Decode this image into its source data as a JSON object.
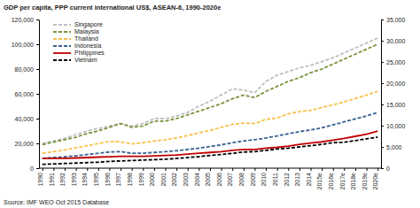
{
  "chart_data": {
    "type": "line",
    "title": "GDP per capita, PPP current international US$, ASEAN-6, 1990-2020e",
    "source": "Source: IMF WEO Oct 2015 Database",
    "categories": [
      "1990",
      "1991",
      "1992",
      "1993",
      "1994",
      "1995",
      "1996",
      "1997",
      "1998",
      "1999",
      "2000",
      "2001",
      "2002",
      "2003",
      "2004",
      "2005",
      "2006",
      "2007",
      "2008",
      "2009",
      "2010",
      "2011",
      "2012",
      "2013",
      "2014",
      "2015e",
      "2016e",
      "2017e",
      "2018e",
      "2019e",
      "2020e"
    ],
    "ylim": [
      0,
      120000
    ],
    "yticks": [
      0,
      {
        "value": 20000,
        "label": "20,000"
      },
      {
        "value": 40000,
        "label": "40,000"
      },
      {
        "value": 60000,
        "label": "60,000"
      },
      {
        "value": 80000,
        "label": "80,000"
      },
      {
        "value": 100000,
        "label": "100,000"
      },
      {
        "value": 120000,
        "label": "120,000"
      }
    ],
    "y2lim": [
      0,
      35000
    ],
    "y2ticks": [
      0,
      {
        "value": 5000,
        "label": "5,000"
      },
      {
        "value": 10000,
        "label": "10,000"
      },
      {
        "value": 15000,
        "label": "15,000"
      },
      {
        "value": 20000,
        "label": "20,000"
      },
      {
        "value": 25000,
        "label": "25,000"
      },
      {
        "value": 30000,
        "label": "30,000"
      },
      {
        "value": 35000,
        "label": "35,000"
      }
    ],
    "grid": false,
    "legend": "top-left",
    "series": [
      {
        "name": "Singapore",
        "color": "#bfbfbf",
        "line_style": "dashed",
        "values": [
          20000,
          22000,
          24000,
          27000,
          30000,
          32000,
          34000,
          36000,
          34000,
          36000,
          40000,
          40000,
          42000,
          45000,
          50000,
          54000,
          59000,
          64000,
          63000,
          61000,
          70000,
          75000,
          78000,
          81000,
          83000,
          86000,
          89000,
          93000,
          97000,
          101000,
          105000
        ]
      },
      {
        "name": "Malaysia",
        "color": "#77933c",
        "line_style": "dashed",
        "axis": "y2",
        "values": [
          5540,
          6130,
          6710,
          7290,
          8170,
          8750,
          9630,
          10500,
          9630,
          9920,
          11080,
          11080,
          11670,
          12540,
          13420,
          14290,
          15170,
          16330,
          17210,
          16630,
          18080,
          19250,
          20420,
          21290,
          22460,
          23330,
          24500,
          25670,
          26830,
          28000,
          29170
        ]
      },
      {
        "name": "Thailand",
        "color": "#f9c04a",
        "line_style": "dashed",
        "axis": "y2",
        "values": [
          3500,
          3900,
          4300,
          4800,
          5300,
          5800,
          6300,
          6200,
          5700,
          6000,
          6400,
          6700,
          7100,
          7700,
          8300,
          8900,
          9600,
          10300,
          10600,
          10500,
          11500,
          11800,
          12800,
          13300,
          13600,
          14300,
          14900,
          15600,
          16400,
          17200,
          18100
        ]
      },
      {
        "name": "Indonesia",
        "color": "#376092",
        "line_style": "dashed",
        "axis": "y2",
        "values": [
          2300,
          2500,
          2700,
          2900,
          3200,
          3500,
          3800,
          3900,
          3500,
          3500,
          3700,
          3900,
          4100,
          4400,
          4700,
          5100,
          5500,
          6000,
          6400,
          6700,
          7100,
          7600,
          8100,
          8600,
          9000,
          9500,
          10200,
          10900,
          11600,
          12300,
          13100
        ]
      },
      {
        "name": "Philippines",
        "color": "#c00000",
        "line_style": "solid",
        "axis": "y2",
        "values": [
          2300,
          2300,
          2300,
          2400,
          2500,
          2600,
          2700,
          2800,
          2800,
          2800,
          2900,
          3000,
          3100,
          3300,
          3500,
          3700,
          3900,
          4200,
          4400,
          4400,
          4700,
          4900,
          5200,
          5600,
          5900,
          6200,
          6600,
          7000,
          7500,
          8000,
          8700
        ]
      },
      {
        "name": "Vietnam",
        "color": "#000000",
        "line_style": "dashed",
        "axis": "y2",
        "values": [
          900,
          1000,
          1100,
          1200,
          1300,
          1400,
          1600,
          1700,
          1800,
          1900,
          2000,
          2100,
          2300,
          2500,
          2700,
          3000,
          3200,
          3500,
          3800,
          3900,
          4200,
          4500,
          4700,
          5000,
          5300,
          5600,
          6000,
          6100,
          6500,
          6900,
          7300
        ]
      }
    ]
  }
}
